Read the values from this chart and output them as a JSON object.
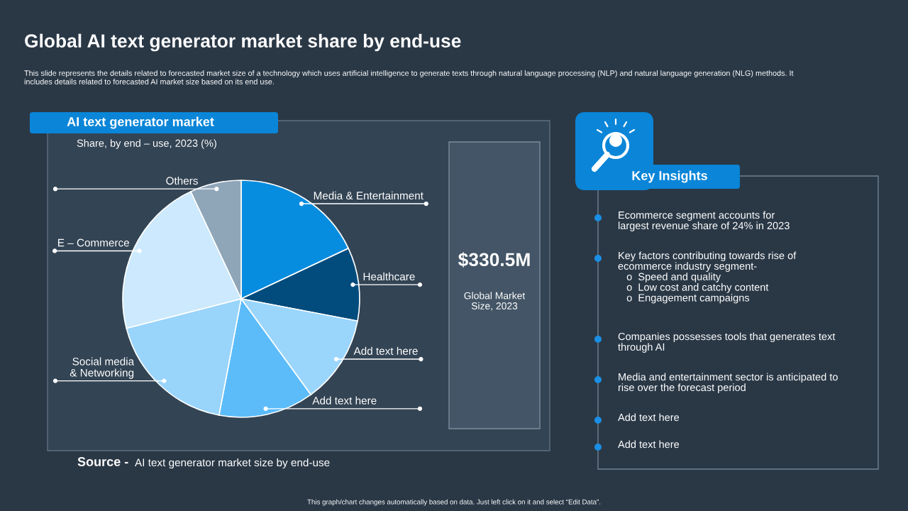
{
  "chart_data": [
    {
      "type": "pie",
      "title": "Global AI text generator market share by end-use",
      "subtitle": "This slide represents the details related to forecasted market size of a technology which uses artificial intelligence to generate texts through natural language processing (NLP) and natural language generation (NLG) methods. It\nincludes details related to forecasted AI market size based on its end use.",
      "categories": [
        "Media & Entertainment",
        "Healthcare",
        "Add text here",
        "Add text here",
        "Social media\n& Networking",
        "E – Commerce",
        "Others"
      ],
      "values": [
        18,
        10,
        12,
        13,
        18,
        22,
        7
      ],
      "colors": [
        "#078de0",
        "#014b7d",
        "#9ad5fc",
        "#5cbcfa",
        "#99d4fb",
        "#cce9fd",
        "#8fa6b9"
      ],
      "annotations": [
        "AI text generator market",
        "Share, by end – use, 2023 (%)",
        "$330.5M",
        "Global Market\nSize, 2023",
        "Source -",
        "AI text generator market size by end-use",
        "This graph/chart changes automatically based on data. Just left click on it and select “Edit Data”."
      ]
    },
    {
      "type": "other",
      "title": "Key Insights",
      "annotations": [
        "Ecommerce segment accounts for\nlargest revenue share of 24% in 2023",
        "Key factors contributing towards rise of\necommerce industry segment-\n   o  Speed and quality\n   o  Low cost and catchy content\n   o  Engagement campaigns",
        "Companies possesses tools that generates text\nthrough AI",
        "Media and entertainment sector is anticipated to\nrise over the forecast period",
        "Add text here",
        "Add text here"
      ]
    }
  ]
}
